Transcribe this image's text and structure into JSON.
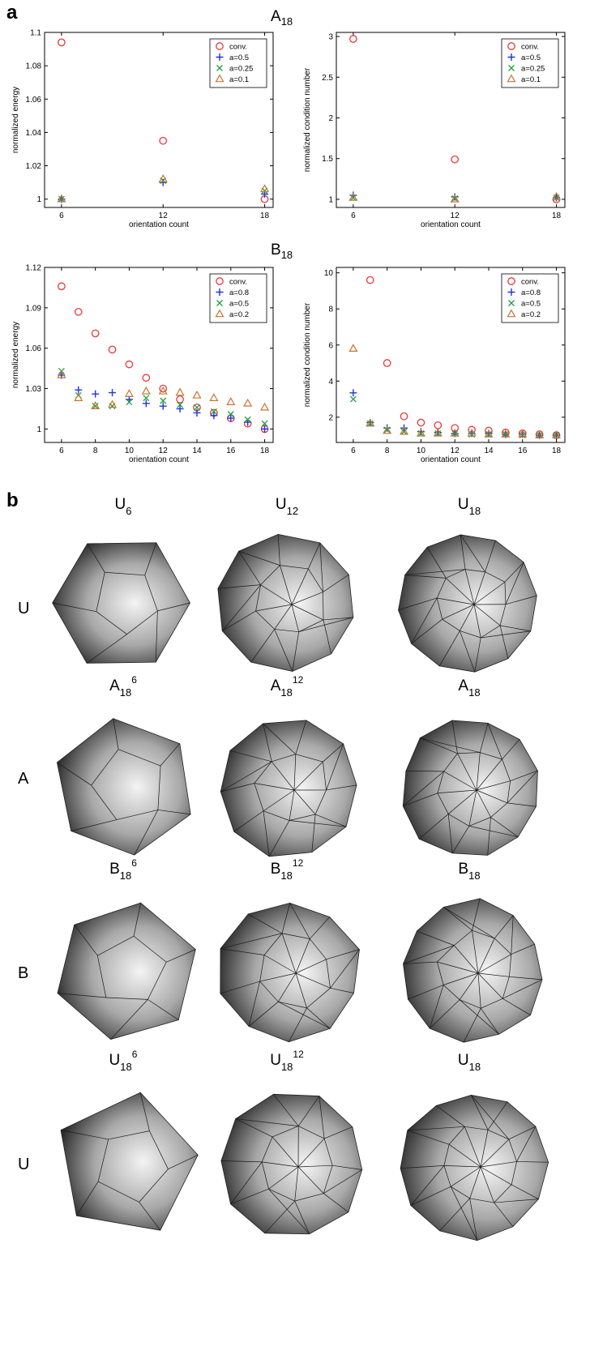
{
  "panel_a_label": "a",
  "panel_b_label": "b",
  "groups": [
    {
      "base": "A",
      "sub": "18"
    },
    {
      "base": "B",
      "sub": "18"
    }
  ],
  "chart_data": [
    {
      "type": "scatter",
      "group": "A18",
      "xlabel": "orientation count",
      "ylabel": "normalized energy",
      "xlim": [
        5,
        18.5
      ],
      "ylim": [
        0.995,
        1.1
      ],
      "xticks": [
        6,
        12,
        18
      ],
      "yticks": [
        1,
        1.02,
        1.04,
        1.06,
        1.08,
        1.1
      ],
      "ytick_labels": [
        "1",
        "1.02",
        "1.04",
        "1.06",
        "1.08",
        "1.1"
      ],
      "legend_position": "top-right",
      "x": [
        6,
        12,
        18
      ],
      "series": [
        {
          "name": "conv.",
          "marker": "circle",
          "color": "#e8383d",
          "values": [
            1.094,
            1.035,
            1.0
          ]
        },
        {
          "name": "a=0.5",
          "marker": "plus",
          "color": "#2233dd",
          "values": [
            1.0,
            1.01,
            1.003
          ]
        },
        {
          "name": "a=0.25",
          "marker": "x",
          "color": "#20a040",
          "values": [
            1.0,
            1.011,
            1.005
          ]
        },
        {
          "name": "a=0.1",
          "marker": "triangle",
          "color": "#c87533",
          "values": [
            1.0,
            1.012,
            1.006
          ]
        }
      ]
    },
    {
      "type": "scatter",
      "group": "A18",
      "xlabel": "orientation count",
      "ylabel": "normalized condition number",
      "xlim": [
        5,
        18.5
      ],
      "ylim": [
        0.9,
        3.05
      ],
      "xticks": [
        6,
        12,
        18
      ],
      "yticks": [
        1,
        1.5,
        2,
        2.5,
        3
      ],
      "ytick_labels": [
        "1",
        "1.5",
        "2",
        "2.5",
        "3"
      ],
      "legend_position": "top-right",
      "x": [
        6,
        12,
        18
      ],
      "series": [
        {
          "name": "conv.",
          "marker": "circle",
          "color": "#e8383d",
          "values": [
            2.97,
            1.49,
            1.0
          ]
        },
        {
          "name": "a=0.5",
          "marker": "plus",
          "color": "#2233dd",
          "values": [
            1.05,
            1.03,
            1.02
          ]
        },
        {
          "name": "a=0.25",
          "marker": "x",
          "color": "#20a040",
          "values": [
            1.02,
            1.01,
            1.02
          ]
        },
        {
          "name": "a=0.1",
          "marker": "triangle",
          "color": "#c87533",
          "values": [
            1.02,
            1.0,
            1.03
          ]
        }
      ]
    },
    {
      "type": "scatter",
      "group": "B18",
      "xlabel": "orientation count",
      "ylabel": "normalized energy",
      "xlim": [
        5,
        18.5
      ],
      "ylim": [
        0.99,
        1.12
      ],
      "xticks": [
        6,
        8,
        10,
        12,
        14,
        16,
        18
      ],
      "yticks": [
        1,
        1.03,
        1.06,
        1.09,
        1.12
      ],
      "ytick_labels": [
        "1",
        "1.03",
        "1.06",
        "1.09",
        "1.12"
      ],
      "legend_position": "top-right",
      "x": [
        6,
        7,
        8,
        9,
        10,
        11,
        12,
        13,
        14,
        15,
        16,
        17,
        18
      ],
      "series": [
        {
          "name": "conv.",
          "marker": "circle",
          "color": "#e8383d",
          "values": [
            1.106,
            1.087,
            1.071,
            1.059,
            1.048,
            1.038,
            1.03,
            1.022,
            1.016,
            1.012,
            1.008,
            1.004,
            1.0
          ]
        },
        {
          "name": "a=0.8",
          "marker": "plus",
          "color": "#2233dd",
          "values": [
            1.04,
            1.029,
            1.026,
            1.027,
            1.022,
            1.019,
            1.017,
            1.015,
            1.012,
            1.01,
            1.008,
            1.005,
            1.0
          ]
        },
        {
          "name": "a=0.5",
          "marker": "x",
          "color": "#20a040",
          "values": [
            1.043,
            1.025,
            1.017,
            1.017,
            1.02,
            1.023,
            1.021,
            1.018,
            1.016,
            1.013,
            1.011,
            1.007,
            1.004
          ]
        },
        {
          "name": "a=0.2",
          "marker": "triangle",
          "color": "#c87533",
          "values": [
            1.04,
            1.023,
            1.017,
            1.018,
            1.026,
            1.028,
            1.028,
            1.027,
            1.025,
            1.023,
            1.02,
            1.019,
            1.016
          ]
        }
      ]
    },
    {
      "type": "scatter",
      "group": "B18",
      "xlabel": "orientation count",
      "ylabel": "normalized condition number",
      "xlim": [
        5,
        18.5
      ],
      "ylim": [
        0.6,
        10.3
      ],
      "xticks": [
        6,
        8,
        10,
        12,
        14,
        16,
        18
      ],
      "yticks": [
        2,
        4,
        6,
        8,
        10
      ],
      "ytick_labels": [
        "2",
        "4",
        "6",
        "8",
        "10"
      ],
      "legend_position": "top-right",
      "x": [
        6,
        7,
        8,
        9,
        10,
        11,
        12,
        13,
        14,
        15,
        16,
        17,
        18
      ],
      "series": [
        {
          "name": "conv.",
          "marker": "circle",
          "color": "#e8383d",
          "values": [
            null,
            9.6,
            5.0,
            2.05,
            1.7,
            1.55,
            1.4,
            1.3,
            1.25,
            1.15,
            1.1,
            1.05,
            1.0
          ]
        },
        {
          "name": "a=0.8",
          "marker": "plus",
          "color": "#2233dd",
          "values": [
            3.35,
            1.7,
            1.4,
            1.4,
            1.2,
            1.15,
            1.1,
            1.1,
            1.1,
            1.05,
            1.05,
            1.0,
            1.0
          ]
        },
        {
          "name": "a=0.5",
          "marker": "x",
          "color": "#20a040",
          "values": [
            3.0,
            1.65,
            1.3,
            1.2,
            1.1,
            1.1,
            1.1,
            1.05,
            1.05,
            1.05,
            1.0,
            1.0,
            1.0
          ]
        },
        {
          "name": "a=0.2",
          "marker": "triangle",
          "color": "#c87533",
          "values": [
            5.8,
            1.65,
            1.25,
            1.2,
            1.1,
            1.1,
            1.1,
            1.1,
            1.05,
            1.05,
            1.05,
            1.0,
            1.0
          ]
        }
      ]
    }
  ],
  "polyhedra": {
    "rows": [
      {
        "label": "U",
        "cols": [
          {
            "base": "U",
            "sub": "6",
            "sup": ""
          },
          {
            "base": "U",
            "sub": "12",
            "sup": ""
          },
          {
            "base": "U",
            "sub": "18",
            "sup": ""
          }
        ]
      },
      {
        "label": "A",
        "cols": [
          {
            "base": "A",
            "sub": "18",
            "sup": "6"
          },
          {
            "base": "A",
            "sub": "18",
            "sup": "12"
          },
          {
            "base": "A",
            "sub": "18",
            "sup": ""
          }
        ]
      },
      {
        "label": "B",
        "cols": [
          {
            "base": "B",
            "sub": "18",
            "sup": "6"
          },
          {
            "base": "B",
            "sub": "18",
            "sup": "12"
          },
          {
            "base": "B",
            "sub": "18",
            "sup": ""
          }
        ]
      },
      {
        "label": "U",
        "cols": [
          {
            "base": "U",
            "sub": "18",
            "sup": "6"
          },
          {
            "base": "U",
            "sub": "18",
            "sup": "12"
          },
          {
            "base": "U",
            "sub": "18",
            "sup": ""
          }
        ]
      }
    ]
  }
}
